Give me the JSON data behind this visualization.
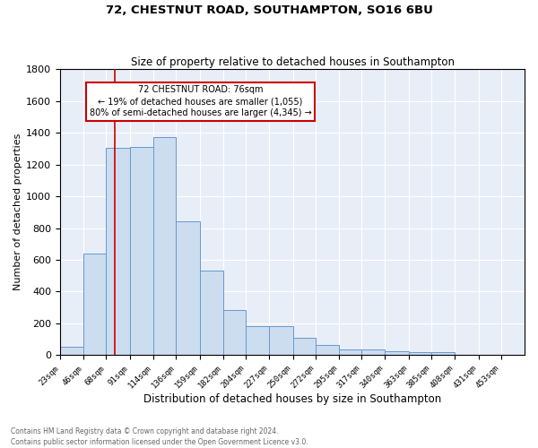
{
  "title1": "72, CHESTNUT ROAD, SOUTHAMPTON, SO16 6BU",
  "title2": "Size of property relative to detached houses in Southampton",
  "xlabel": "Distribution of detached houses by size in Southampton",
  "ylabel": "Number of detached properties",
  "bar_color": "#ccddf0",
  "bar_edge_color": "#6699cc",
  "bg_color": "#e8eef7",
  "grid_color": "#ffffff",
  "red_line_x": 76,
  "annotation_text": "72 CHESTNUT ROAD: 76sqm\n← 19% of detached houses are smaller (1,055)\n80% of semi-detached houses are larger (4,345) →",
  "annotation_box_color": "white",
  "annotation_box_edge": "#cc0000",
  "bin_edges": [
    23,
    46,
    68,
    91,
    114,
    136,
    159,
    182,
    204,
    227,
    250,
    272,
    295,
    317,
    340,
    363,
    385,
    408,
    431,
    453,
    476
  ],
  "bin_counts": [
    55,
    640,
    1305,
    1310,
    1370,
    845,
    530,
    285,
    183,
    183,
    108,
    65,
    35,
    35,
    25,
    18,
    18,
    0,
    0,
    0
  ],
  "ylim": [
    0,
    1800
  ],
  "yticks": [
    0,
    200,
    400,
    600,
    800,
    1000,
    1200,
    1400,
    1600,
    1800
  ],
  "footnote1": "Contains HM Land Registry data © Crown copyright and database right 2024.",
  "footnote2": "Contains public sector information licensed under the Open Government Licence v3.0."
}
